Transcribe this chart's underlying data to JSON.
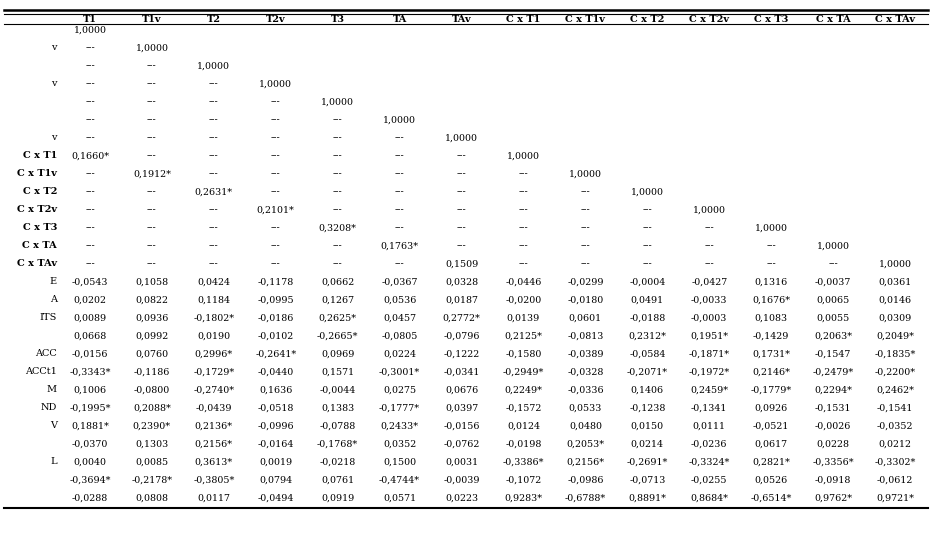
{
  "columns": [
    "T1",
    "T1v",
    "T2",
    "T2v",
    "T3",
    "TA",
    "TAv",
    "C x T1",
    "C x T1v",
    "C x T2",
    "C x T2v",
    "C x T3",
    "C x TA",
    "C x TAv"
  ],
  "row_labels": [
    "",
    "v",
    "",
    "v",
    "",
    "",
    "v",
    "C x T1",
    "C x T1v",
    "C x T2",
    "C x T2v",
    "C x T3",
    "C x TA",
    "C x TAv",
    "E",
    "A",
    "ITS",
    "",
    "ACC",
    "ACCt1",
    "M",
    "ND",
    "V",
    "",
    "L",
    "",
    ""
  ],
  "rows": [
    [
      "1,0000",
      "",
      "",
      "",
      "",
      "",
      "",
      "",
      "",
      "",
      "",
      "",
      "",
      ""
    ],
    [
      "---",
      "1,0000",
      "",
      "",
      "",
      "",
      "",
      "",
      "",
      "",
      "",
      "",
      "",
      ""
    ],
    [
      "---",
      "---",
      "1,0000",
      "",
      "",
      "",
      "",
      "",
      "",
      "",
      "",
      "",
      "",
      ""
    ],
    [
      "---",
      "---",
      "---",
      "1,0000",
      "",
      "",
      "",
      "",
      "",
      "",
      "",
      "",
      "",
      ""
    ],
    [
      "---",
      "---",
      "---",
      "---",
      "1,0000",
      "",
      "",
      "",
      "",
      "",
      "",
      "",
      "",
      ""
    ],
    [
      "---",
      "---",
      "---",
      "---",
      "---",
      "1,0000",
      "",
      "",
      "",
      "",
      "",
      "",
      "",
      ""
    ],
    [
      "---",
      "---",
      "---",
      "---",
      "---",
      "---",
      "1,0000",
      "",
      "",
      "",
      "",
      "",
      "",
      ""
    ],
    [
      "0,1660*",
      "---",
      "---",
      "---",
      "---",
      "---",
      "---",
      "1,0000",
      "",
      "",
      "",
      "",
      "",
      ""
    ],
    [
      "---",
      "0,1912*",
      "---",
      "---",
      "---",
      "---",
      "---",
      "---",
      "1,0000",
      "",
      "",
      "",
      "",
      ""
    ],
    [
      "---",
      "---",
      "0,2631*",
      "---",
      "---",
      "---",
      "---",
      "---",
      "---",
      "1,0000",
      "",
      "",
      "",
      ""
    ],
    [
      "---",
      "---",
      "---",
      "0,2101*",
      "---",
      "---",
      "---",
      "---",
      "---",
      "---",
      "1,0000",
      "",
      "",
      ""
    ],
    [
      "---",
      "---",
      "---",
      "---",
      "0,3208*",
      "---",
      "---",
      "---",
      "---",
      "---",
      "---",
      "1,0000",
      "",
      ""
    ],
    [
      "---",
      "---",
      "---",
      "---",
      "---",
      "0,1763*",
      "---",
      "---",
      "---",
      "---",
      "---",
      "---",
      "1,0000",
      ""
    ],
    [
      "---",
      "---",
      "---",
      "---",
      "---",
      "---",
      "0,1509",
      "---",
      "---",
      "---",
      "---",
      "---",
      "---",
      "1,0000"
    ],
    [
      "-0,0543",
      "0,1058",
      "0,0424",
      "-0,1178",
      "0,0662",
      "-0,0367",
      "0,0328",
      "-0,0446",
      "-0,0299",
      "-0,0004",
      "-0,0427",
      "0,1316",
      "-0,0037",
      "0,0361"
    ],
    [
      "0,0202",
      "0,0822",
      "0,1184",
      "-0,0995",
      "0,1267",
      "0,0536",
      "0,0187",
      "-0,0200",
      "-0,0180",
      "0,0491",
      "-0,0033",
      "0,1676*",
      "0,0065",
      "0,0146"
    ],
    [
      "0,0089",
      "0,0936",
      "-0,1802*",
      "-0,0186",
      "0,2625*",
      "0,0457",
      "0,2772*",
      "0,0139",
      "0,0601",
      "-0,0188",
      "-0,0003",
      "0,1083",
      "0,0055",
      "0,0309"
    ],
    [
      "0,0668",
      "0,0992",
      "0,0190",
      "-0,0102",
      "-0,2665*",
      "-0,0805",
      "-0,0796",
      "0,2125*",
      "-0,0813",
      "0,2312*",
      "0,1951*",
      "-0,1429",
      "0,2063*",
      "0,2049*"
    ],
    [
      "-0,0156",
      "0,0760",
      "0,2996*",
      "-0,2641*",
      "0,0969",
      "0,0224",
      "-0,1222",
      "-0,1580",
      "-0,0389",
      "-0,0584",
      "-0,1871*",
      "0,1731*",
      "-0,1547",
      "-0,1835*"
    ],
    [
      "-0,3343*",
      "-0,1186",
      "-0,1729*",
      "-0,0440",
      "0,1571",
      "-0,3001*",
      "-0,0341",
      "-0,2949*",
      "-0,0328",
      "-0,2071*",
      "-0,1972*",
      "0,2146*",
      "-0,2479*",
      "-0,2200*"
    ],
    [
      "0,1006",
      "-0,0800",
      "-0,2740*",
      "0,1636",
      "-0,0044",
      "0,0275",
      "0,0676",
      "0,2249*",
      "-0,0336",
      "0,1406",
      "0,2459*",
      "-0,1779*",
      "0,2294*",
      "0,2462*"
    ],
    [
      "-0,1995*",
      "0,2088*",
      "-0,0439",
      "-0,0518",
      "0,1383",
      "-0,1777*",
      "0,0397",
      "-0,1572",
      "0,0533",
      "-0,1238",
      "-0,1341",
      "0,0926",
      "-0,1531",
      "-0,1541"
    ],
    [
      "0,1881*",
      "0,2390*",
      "0,2136*",
      "-0,0996",
      "-0,0788",
      "0,2433*",
      "-0,0156",
      "0,0124",
      "0,0480",
      "0,0150",
      "0,0111",
      "-0,0521",
      "-0,0026",
      "-0,0352"
    ],
    [
      "-0,0370",
      "0,1303",
      "0,2156*",
      "-0,0164",
      "-0,1768*",
      "0,0352",
      "-0,0762",
      "-0,0198",
      "0,2053*",
      "0,0214",
      "-0,0236",
      "0,0617",
      "0,0228",
      "0,0212"
    ],
    [
      "0,0040",
      "0,0085",
      "0,3613*",
      "0,0019",
      "-0,0218",
      "0,1500",
      "0,0031",
      "-0,3386*",
      "0,2156*",
      "-0,2691*",
      "-0,3324*",
      "0,2821*",
      "-0,3356*",
      "-0,3302*"
    ],
    [
      "-0,3694*",
      "-0,2178*",
      "-0,3805*",
      "0,0794",
      "0,0761",
      "-0,4744*",
      "-0,0039",
      "-0,1072",
      "-0,0986",
      "-0,0713",
      "-0,0255",
      "0,0526",
      "-0,0918",
      "-0,0612"
    ],
    [
      "-0,0288",
      "0,0808",
      "0,0117",
      "-0,0494",
      "0,0919",
      "0,0571",
      "0,0223",
      "0,9283*",
      "-0,6788*",
      "0,8891*",
      "0,8684*",
      "-0,6514*",
      "0,9762*",
      "0,9721*"
    ]
  ],
  "bold_row_indices": [
    7,
    8,
    9,
    10,
    11,
    12,
    13
  ],
  "background_color": "#ffffff",
  "text_color": "#000000",
  "figwidth": 9.3,
  "figheight": 5.38,
  "dpi": 100
}
